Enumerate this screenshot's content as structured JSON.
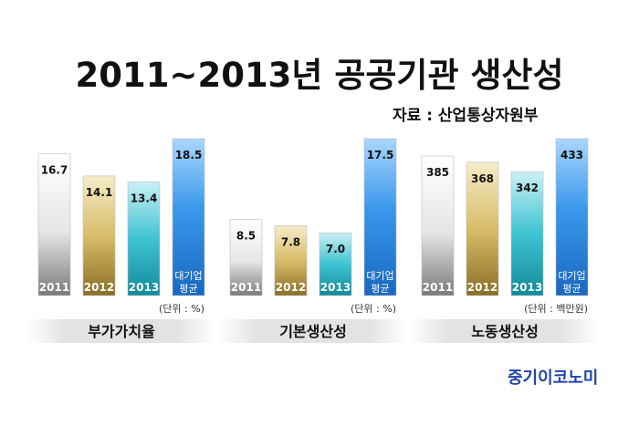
{
  "title": "2011~2013년 공공기관 생산성",
  "source": "자료 : 산업통상자원부",
  "brand": "중기이코노미",
  "colors": {
    "2011": "#c8c8c8",
    "2012": "#c9a94a",
    "2013": "#3cc1cf",
    "avg": "#2d8de0",
    "label_bg": "#e6e6e6"
  },
  "chart_data": [
    {
      "type": "bar",
      "title": "부가가치율",
      "unit": "(단위 : %)",
      "categories": [
        "2011",
        "2012",
        "2013",
        "대기업 평균"
      ],
      "values": [
        16.7,
        14.1,
        13.4,
        18.5
      ],
      "value_labels": [
        "16.7",
        "14.1",
        "13.4",
        "18.5"
      ]
    },
    {
      "type": "bar",
      "title": "기본생산성",
      "unit": "(단위 : %)",
      "categories": [
        "2011",
        "2012",
        "2013",
        "대기업 평균"
      ],
      "values": [
        8.5,
        7.8,
        7.0,
        17.5
      ],
      "value_labels": [
        "8.5",
        "7.8",
        "7.0",
        "17.5"
      ]
    },
    {
      "type": "bar",
      "title": "노동생산성",
      "unit": "(단위 : 백만원)",
      "categories": [
        "2011",
        "2012",
        "2013",
        "대기업 평균"
      ],
      "values": [
        385,
        368,
        342,
        433
      ],
      "value_labels": [
        "385",
        "368",
        "342",
        "433"
      ]
    }
  ]
}
